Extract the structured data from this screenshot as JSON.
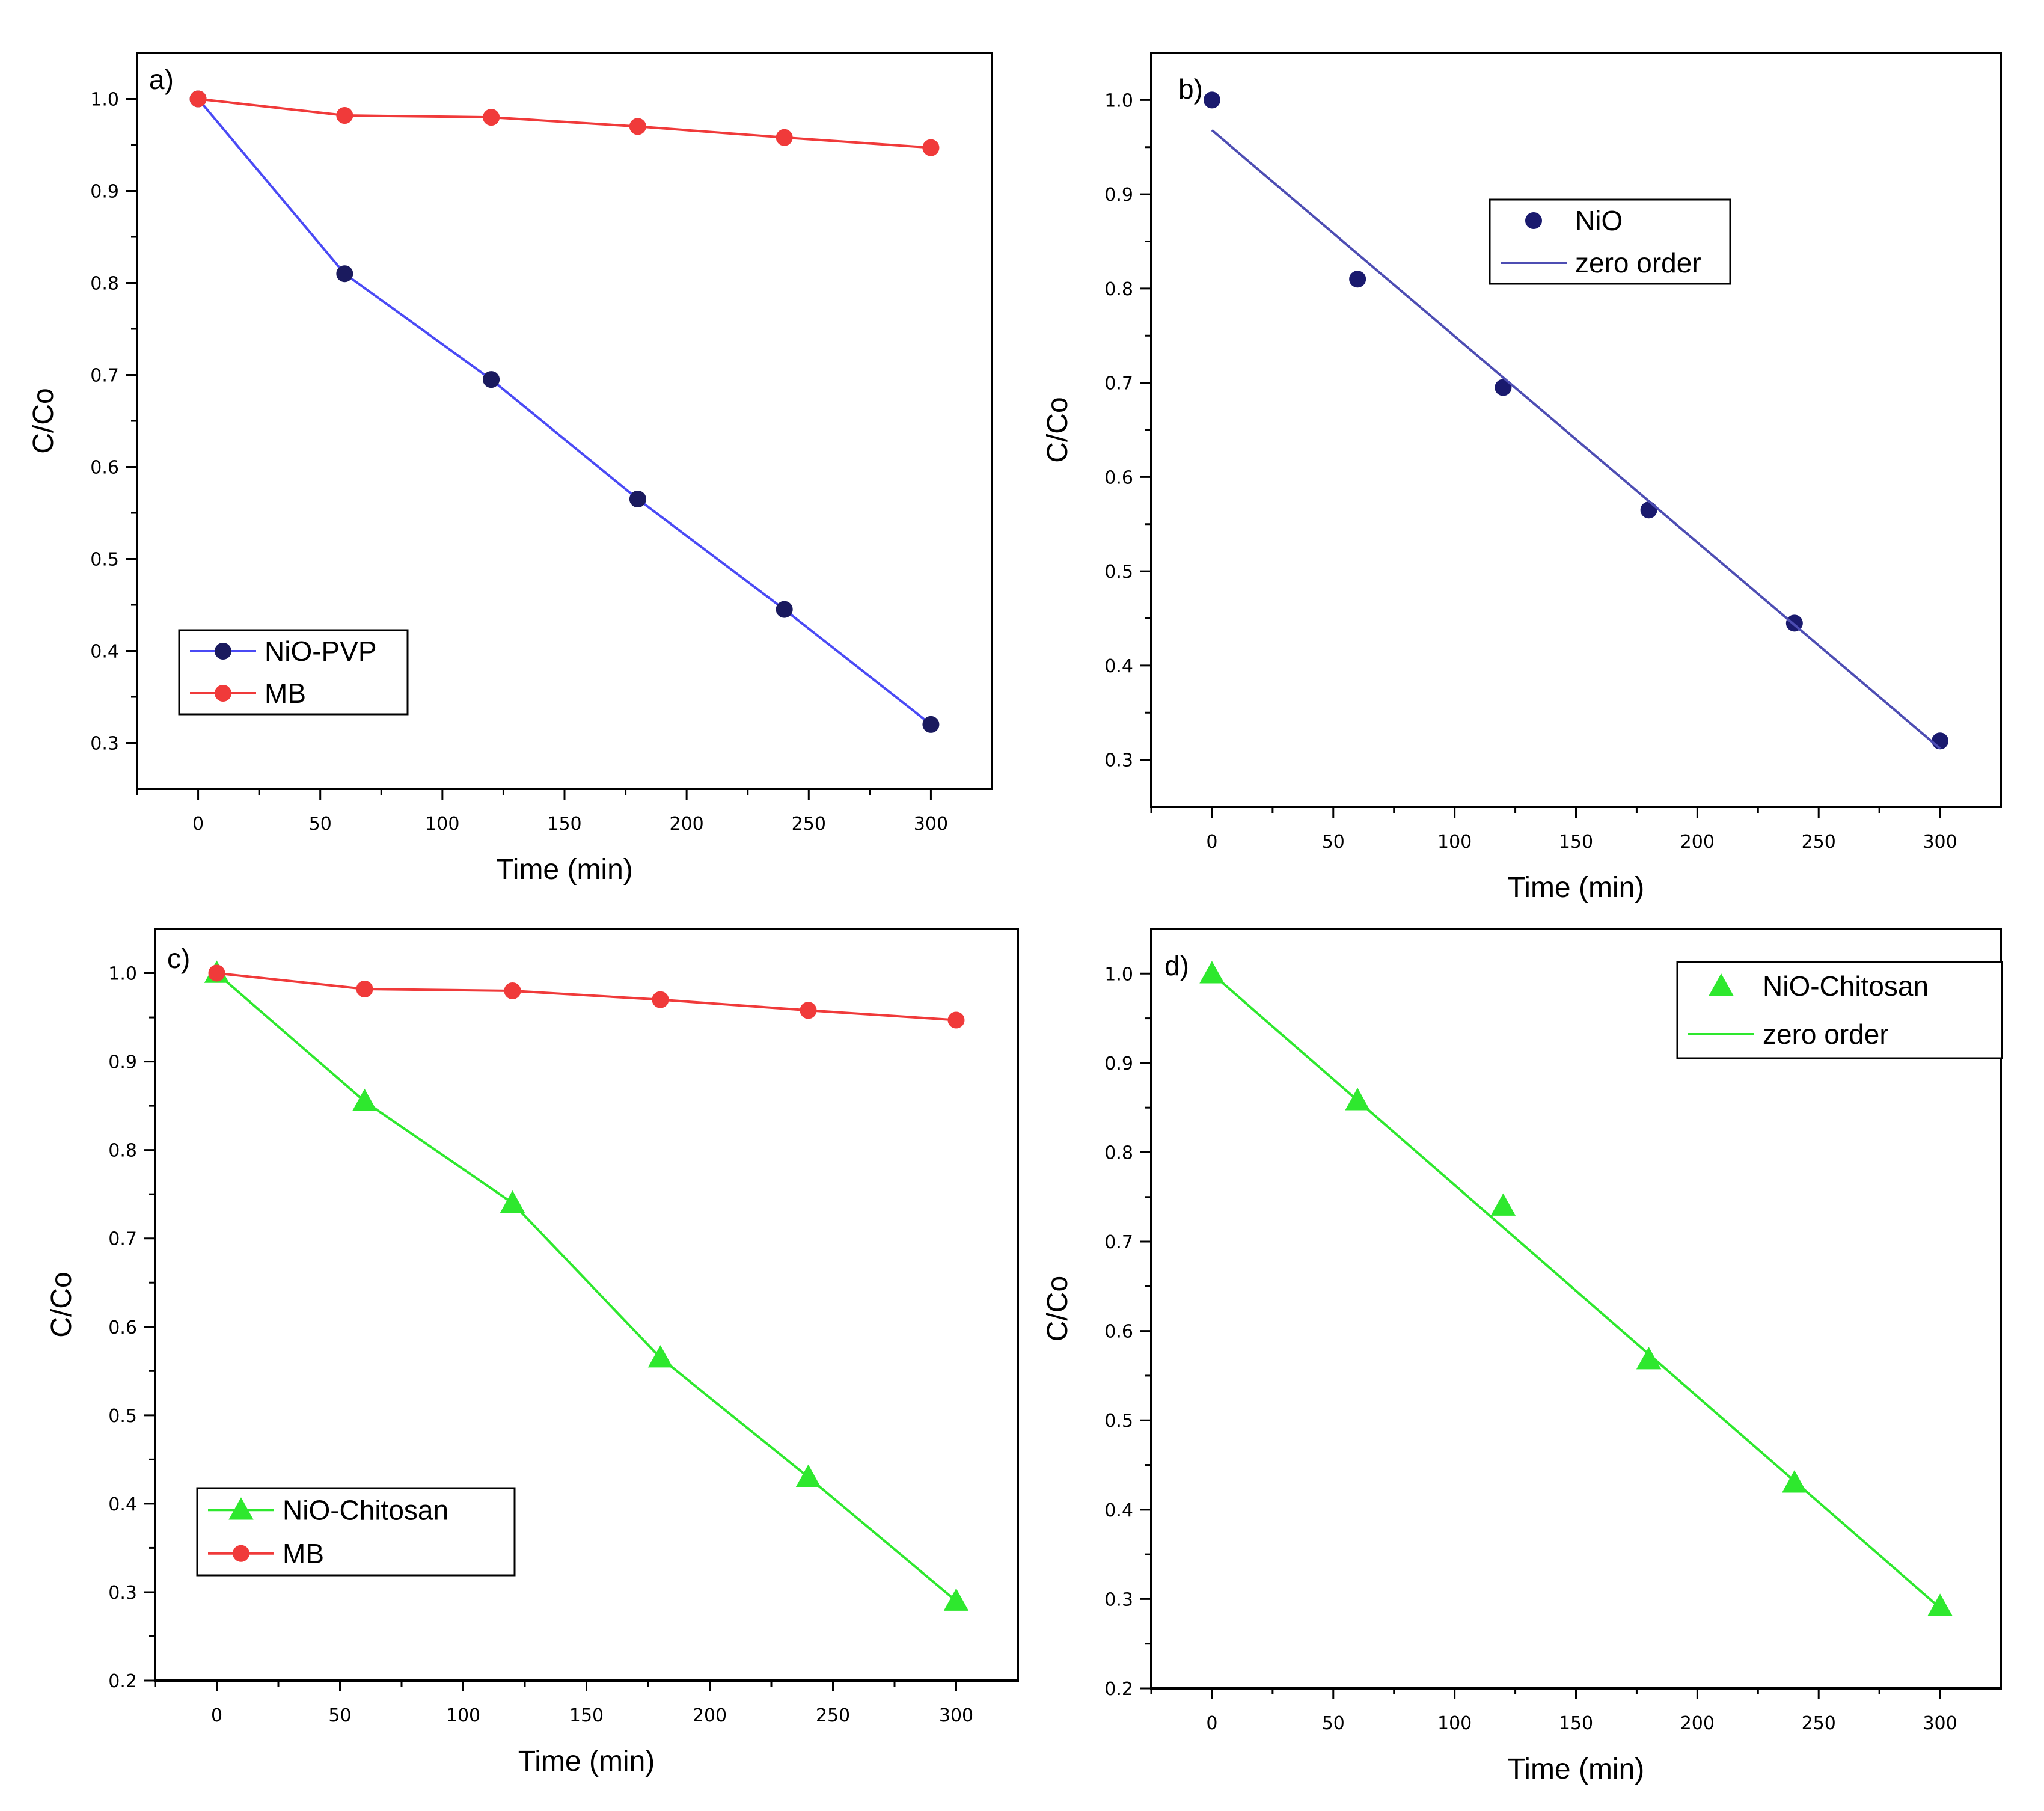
{
  "chart_data": [
    {
      "type": "line",
      "panel_label": "a)",
      "xlabel": "Time (min)",
      "ylabel": "C/Co",
      "xlim": [
        -25,
        325
      ],
      "ylim": [
        0.25,
        1.05
      ],
      "xticks": [
        0,
        50,
        100,
        150,
        200,
        250,
        300
      ],
      "yticks": [
        0.3,
        0.4,
        0.5,
        0.6,
        0.7,
        0.8,
        0.9,
        1.0
      ],
      "ytick_labels": [
        "0.3",
        "0.4",
        "0.5",
        "0.6",
        "0.7",
        "0.8",
        "0.9",
        "1.0"
      ],
      "legend_position": "lower-left",
      "series": [
        {
          "name": "NiO-PVP",
          "color": "#4a4af5",
          "marker": "circle",
          "marker_color": "#1a1a5e",
          "x": [
            0,
            60,
            120,
            180,
            240,
            300
          ],
          "values": [
            1.0,
            0.81,
            0.695,
            0.565,
            0.445,
            0.32
          ]
        },
        {
          "name": "MB",
          "color": "#f03a3a",
          "marker": "circle",
          "marker_color": "#f03a3a",
          "x": [
            0,
            60,
            120,
            180,
            240,
            300
          ],
          "values": [
            1.0,
            0.982,
            0.98,
            0.97,
            0.958,
            0.947
          ]
        }
      ]
    },
    {
      "type": "scatter",
      "panel_label": "b)",
      "xlabel": "Time (min)",
      "ylabel": "C/Co",
      "xlim": [
        -25,
        325
      ],
      "ylim": [
        0.25,
        1.05
      ],
      "xticks": [
        0,
        50,
        100,
        150,
        200,
        250,
        300
      ],
      "yticks": [
        0.3,
        0.4,
        0.5,
        0.6,
        0.7,
        0.8,
        0.9,
        1.0
      ],
      "ytick_labels": [
        "0.3",
        "0.4",
        "0.5",
        "0.6",
        "0.7",
        "0.8",
        "0.9",
        "1.0"
      ],
      "legend_position": "upper-center",
      "series": [
        {
          "name": "NiO",
          "color": "#1a1a6e",
          "marker": "circle",
          "marker_color": "#1a1a6e",
          "line": false,
          "x": [
            0,
            60,
            120,
            180,
            240,
            300
          ],
          "values": [
            1.0,
            0.81,
            0.695,
            0.565,
            0.445,
            0.32
          ]
        },
        {
          "name": "zero order",
          "color": "#4d4db3",
          "marker": "none",
          "line": true,
          "x": [
            0,
            300
          ],
          "values": [
            0.968,
            0.312
          ]
        }
      ]
    },
    {
      "type": "line",
      "panel_label": "c)",
      "xlabel": "Time (min)",
      "ylabel": "C/Co",
      "xlim": [
        -25,
        325
      ],
      "ylim": [
        0.2,
        1.05
      ],
      "xticks": [
        0,
        50,
        100,
        150,
        200,
        250,
        300
      ],
      "yticks": [
        0.2,
        0.3,
        0.4,
        0.5,
        0.6,
        0.7,
        0.8,
        0.9,
        1.0
      ],
      "ytick_labels": [
        "0.2",
        "0.3",
        "0.4",
        "0.5",
        "0.6",
        "0.7",
        "0.8",
        "0.9",
        "1.0"
      ],
      "legend_position": "lower-left",
      "series": [
        {
          "name": "NiO-Chitosan",
          "color": "#2ee82e",
          "marker": "triangle",
          "marker_color": "#2ee82e",
          "x": [
            0,
            60,
            120,
            180,
            240,
            300
          ],
          "values": [
            1.0,
            0.855,
            0.74,
            0.565,
            0.43,
            0.29
          ]
        },
        {
          "name": "MB",
          "color": "#f03a3a",
          "marker": "circle",
          "marker_color": "#f03a3a",
          "x": [
            0,
            60,
            120,
            180,
            240,
            300
          ],
          "values": [
            1.0,
            0.982,
            0.98,
            0.97,
            0.958,
            0.947
          ]
        }
      ]
    },
    {
      "type": "scatter",
      "panel_label": "d)",
      "xlabel": "Time (min)",
      "ylabel": "C/Co",
      "xlim": [
        -25,
        325
      ],
      "ylim": [
        0.2,
        1.05
      ],
      "xticks": [
        0,
        50,
        100,
        150,
        200,
        250,
        300
      ],
      "yticks": [
        0.2,
        0.3,
        0.4,
        0.5,
        0.6,
        0.7,
        0.8,
        0.9,
        1.0
      ],
      "ytick_labels": [
        "0.2",
        "0.3",
        "0.4",
        "0.5",
        "0.6",
        "0.7",
        "0.8",
        "0.9",
        "1.0"
      ],
      "legend_position": "upper-right",
      "series": [
        {
          "name": "NiO-Chitosan",
          "color": "#2ee82e",
          "marker": "triangle",
          "marker_color": "#2ee82e",
          "line": false,
          "x": [
            0,
            60,
            120,
            180,
            240,
            300
          ],
          "values": [
            1.0,
            0.858,
            0.74,
            0.568,
            0.43,
            0.292
          ]
        },
        {
          "name": "zero order",
          "color": "#2ee82e",
          "marker": "none",
          "line": true,
          "x": [
            0,
            300
          ],
          "values": [
            1.0,
            0.29
          ]
        }
      ]
    }
  ]
}
